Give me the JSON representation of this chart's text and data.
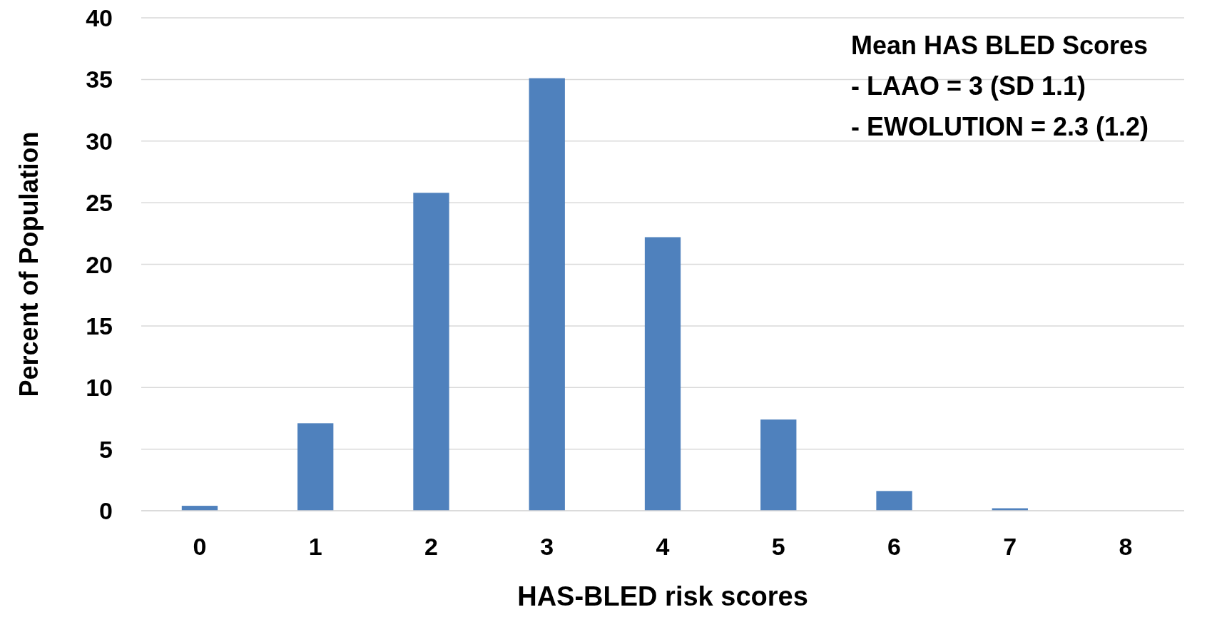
{
  "chart_data": {
    "type": "bar",
    "xlabel": "HAS-BLED risk scores",
    "ylabel": "Percent of Population",
    "categories": [
      "0",
      "1",
      "2",
      "3",
      "4",
      "5",
      "6",
      "7",
      "8"
    ],
    "values": [
      0.4,
      7.1,
      25.8,
      35.1,
      22.2,
      7.4,
      1.6,
      0.2,
      0
    ],
    "color": "#4f81bd",
    "ylim": [
      0,
      40
    ],
    "yticks": [
      0,
      5,
      10,
      15,
      20,
      25,
      30,
      35,
      40
    ],
    "grid": "y",
    "annotations": [
      "Mean HAS BLED Scores",
      "- LAAO = 3 (SD 1.1)",
      "- EWOLUTION = 2.3 (1.2)"
    ]
  }
}
